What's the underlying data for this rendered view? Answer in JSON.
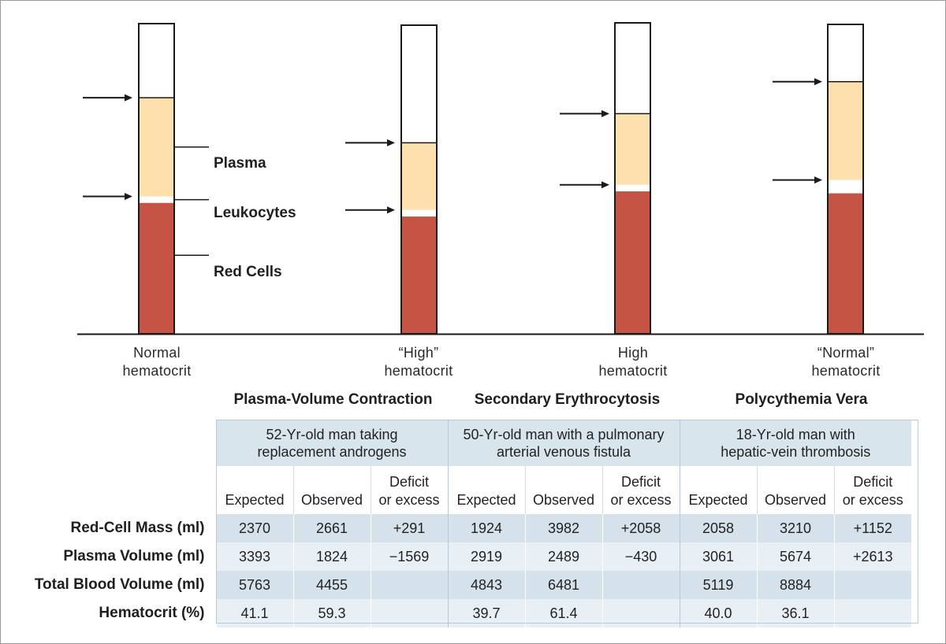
{
  "tubes": [
    {
      "caption_line1": "Normal",
      "caption_line2": "hematocrit",
      "red_fraction": 0.422,
      "leukocyte_fraction": 0.021,
      "plasma_fraction": 0.318
    },
    {
      "caption_line1": "“High”",
      "caption_line2": "hematocrit",
      "red_fraction": 0.38,
      "leukocyte_fraction": 0.021,
      "plasma_fraction": 0.218
    },
    {
      "caption_line1": "High",
      "caption_line2": "hematocrit",
      "red_fraction": 0.458,
      "leukocyte_fraction": 0.021,
      "plasma_fraction": 0.229
    },
    {
      "caption_line1": "“Normal”",
      "caption_line2": "hematocrit",
      "red_fraction": 0.454,
      "leukocyte_fraction": 0.043,
      "plasma_fraction": 0.318
    }
  ],
  "legend": {
    "plasma": "Plasma",
    "leukocytes": "Leukocytes",
    "red_cells": "Red Cells"
  },
  "conditions": [
    {
      "title": "Plasma-Volume Contraction",
      "case_line1": "52-Yr-old man taking",
      "case_line2": "replacement androgens"
    },
    {
      "title": "Secondary Erythrocytosis",
      "case_line1": "50-Yr-old man with a pulmonary",
      "case_line2": "arterial venous fistula"
    },
    {
      "title": "Polycythemia Vera",
      "case_line1": "18-Yr-old man with",
      "case_line2": "hepatic-vein thrombosis"
    }
  ],
  "column_headers": {
    "expected": "Expected",
    "observed": "Observed",
    "deficit_line1": "Deficit",
    "deficit_line2": "or excess"
  },
  "rows": [
    {
      "label": "Red-Cell Mass (ml)",
      "values": [
        "2370",
        "2661",
        "+291",
        "1924",
        "3982",
        "+2058",
        "2058",
        "3210",
        "+1152"
      ]
    },
    {
      "label": "Plasma Volume (ml)",
      "values": [
        "3393",
        "1824",
        "−1569",
        "2919",
        "2489",
        "−430",
        "3061",
        "5674",
        "+2613"
      ]
    },
    {
      "label": "Total Blood Volume (ml)",
      "values": [
        "5763",
        "4455",
        "",
        "4843",
        "6481",
        "",
        "5119",
        "8884",
        ""
      ]
    },
    {
      "label": "Hematocrit (%)",
      "values": [
        "41.1",
        "59.3",
        "",
        "39.7",
        "61.4",
        "",
        "40.0",
        "36.1",
        ""
      ]
    }
  ],
  "colors": {
    "red_cells": "#c55444",
    "plasma": "#fde0ad",
    "leukocytes": "#ffffff",
    "table_case_bg": "#d9e5ed",
    "table_row_dark": "#d6e2eb",
    "table_row_light": "#e9f0f5"
  }
}
